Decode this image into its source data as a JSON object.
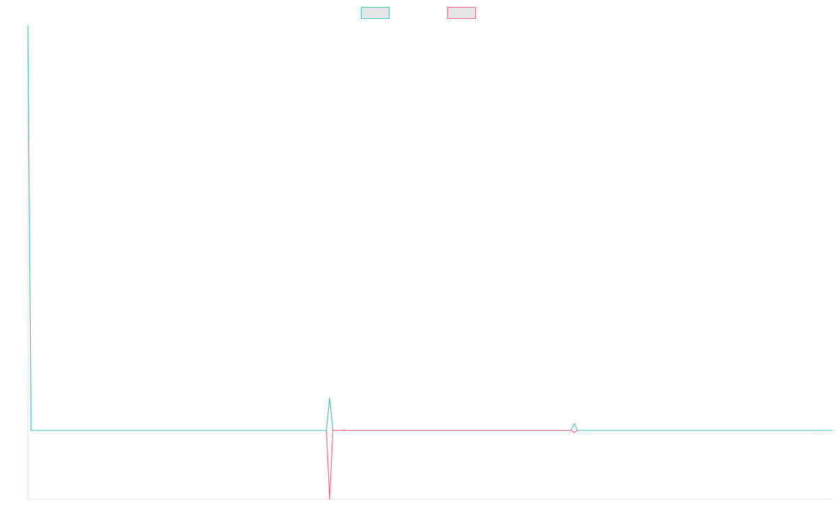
{
  "chart_data": {
    "type": "line",
    "title": "",
    "xlabel": "",
    "ylabel": "",
    "grid": false,
    "legend_position": "top-center",
    "colors": {
      "series_1": "#4bc0c0",
      "series_2": "#ff6384",
      "legend_fill": "#e6e6e6",
      "axis": "#e0e0e0"
    },
    "series": [
      {
        "name": "",
        "points": [
          {
            "x": 0,
            "y": 100
          },
          {
            "x": 0.4,
            "y": 0
          },
          {
            "x": 37.1,
            "y": 0
          },
          {
            "x": 37.5,
            "y": 8
          },
          {
            "x": 37.9,
            "y": 0
          },
          {
            "x": 67.5,
            "y": 0
          },
          {
            "x": 67.9,
            "y": 1.7
          },
          {
            "x": 68.3,
            "y": 0
          },
          {
            "x": 100,
            "y": 0
          }
        ]
      },
      {
        "name": "",
        "points": [
          {
            "x": 37.1,
            "y": 0
          },
          {
            "x": 37.5,
            "y": -17
          },
          {
            "x": 37.9,
            "y": 0
          },
          {
            "x": 39.2,
            "y": 0
          },
          {
            "x": 39.3,
            "y": 0.2
          },
          {
            "x": 39.4,
            "y": 0
          },
          {
            "x": 67.5,
            "y": 0
          },
          {
            "x": 67.9,
            "y": -0.5
          },
          {
            "x": 68.3,
            "y": 0
          }
        ]
      }
    ],
    "xlim": [
      0,
      100
    ],
    "ylim": [
      -17,
      100
    ]
  }
}
